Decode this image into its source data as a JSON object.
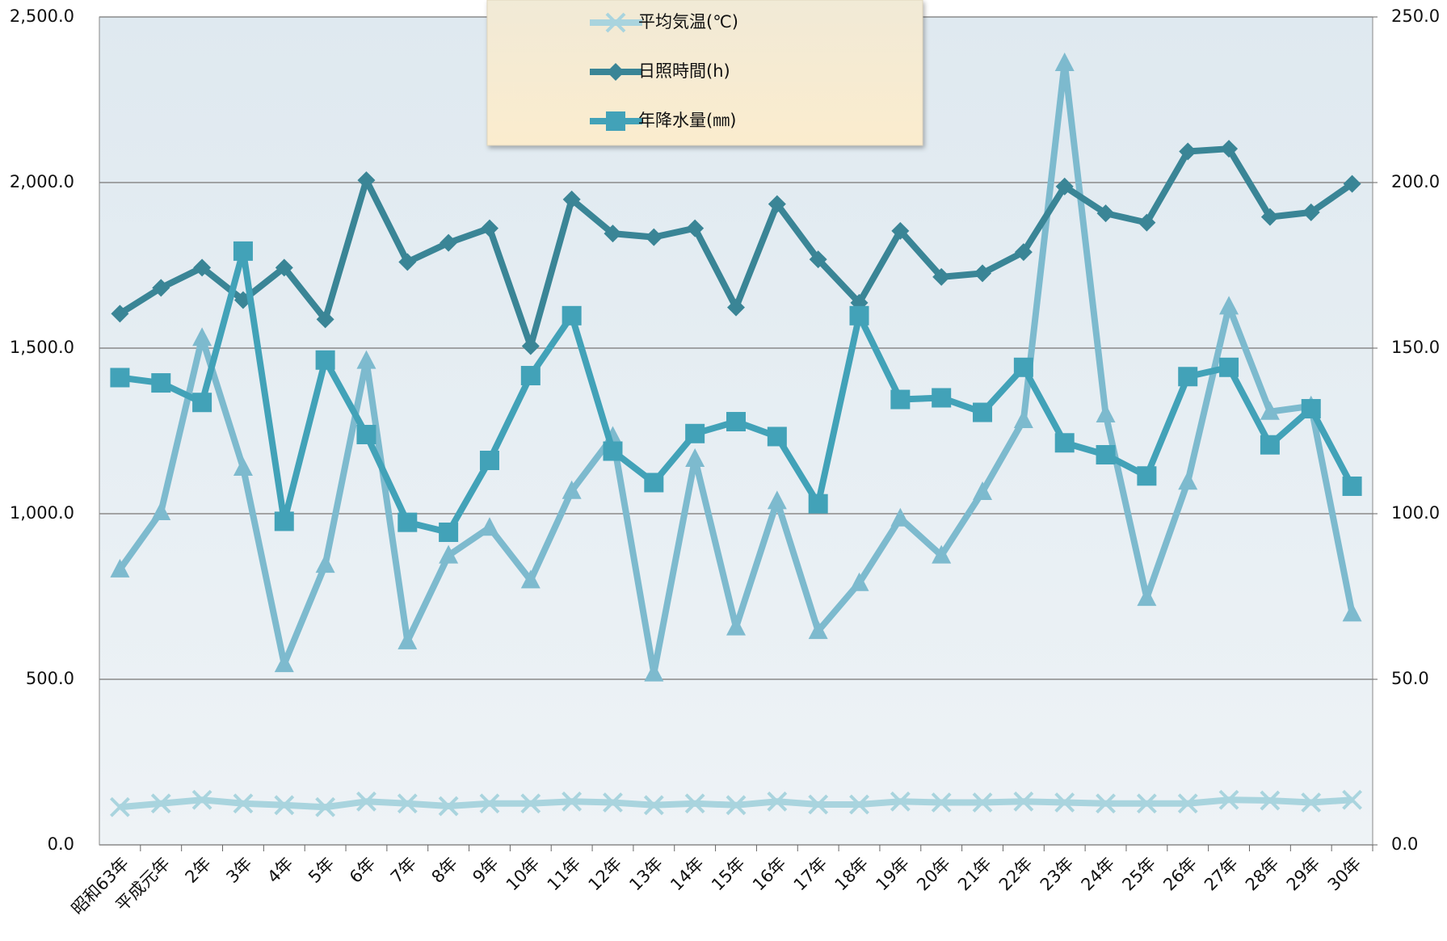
{
  "chart_data": {
    "type": "line",
    "categories": [
      "昭和63年",
      "平成元年",
      "2年",
      "3年",
      "4年",
      "5年",
      "6年",
      "7年",
      "8年",
      "9年",
      "10年",
      "11年",
      "12年",
      "13年",
      "14年",
      "15年",
      "16年",
      "17年",
      "18年",
      "19年",
      "20年",
      "21年",
      "22年",
      "23年",
      "24年",
      "25年",
      "26年",
      "27年",
      "28年",
      "29年",
      "30年"
    ],
    "series": [
      {
        "name": "平均気温(℃)",
        "color": "#a9d4de",
        "marker": "x",
        "axis": "y2",
        "values": [
          11.4,
          12.5,
          13.6,
          12.5,
          12.0,
          11.4,
          13.1,
          12.5,
          11.7,
          12.5,
          12.5,
          13.1,
          12.8,
          12.0,
          12.5,
          12.0,
          13.1,
          12.2,
          12.2,
          13.1,
          12.8,
          12.8,
          13.1,
          12.8,
          12.5,
          12.5,
          12.5,
          13.6,
          13.4,
          12.8,
          13.6
        ]
      },
      {
        "color": "#7dbace",
        "marker": "triangle",
        "values": [
          832,
          1005,
          1531,
          1139,
          546,
          846,
          1462,
          615,
          874,
          958,
          799,
          1069,
          1233,
          518,
          1166,
          657,
          1038,
          646,
          791,
          986,
          874,
          1066,
          1283,
          2361,
          1300,
          746,
          1097,
          1626,
          1308,
          1325,
          699
        ]
      },
      {
        "name": "日照時間(h)",
        "color": "#3a8596",
        "marker": "diamond",
        "values": [
          1604,
          1682,
          1743,
          1645,
          1743,
          1587,
          2007,
          1760,
          1818,
          1862,
          1506,
          1949,
          1846,
          1835,
          1862,
          1623,
          1935,
          1768,
          1637,
          1854,
          1715,
          1726,
          1790,
          1988,
          1907,
          1879,
          2094,
          2102,
          1896,
          1910,
          1996
        ]
      },
      {
        "name": "年降水量(㎜)",
        "color": "#42a2b8",
        "marker": "square",
        "values": [
          1411,
          1395,
          1336,
          1793,
          977,
          1464,
          1239,
          974,
          944,
          1161,
          1417,
          1598,
          1189,
          1094,
          1242,
          1278,
          1233,
          1030,
          1598,
          1345,
          1350,
          1306,
          1442,
          1214,
          1178,
          1114,
          1414,
          1442,
          1208,
          1317,
          1083
        ]
      }
    ],
    "ylim": [
      0,
      2500
    ],
    "yticks": [
      {
        "value": 0,
        "label": "0.0"
      },
      {
        "value": 500,
        "label": "500.0"
      },
      {
        "value": 1000,
        "label": "1,000.0"
      },
      {
        "value": 1500,
        "label": "1,500.0"
      },
      {
        "value": 2000,
        "label": "2,000.0"
      },
      {
        "value": 2500,
        "label": "2,500.0"
      }
    ],
    "y2lim": [
      0,
      250
    ],
    "y2ticks": [
      {
        "value": 0,
        "label": "0.0"
      },
      {
        "value": 50,
        "label": "50.0"
      },
      {
        "value": 100,
        "label": "100.0"
      },
      {
        "value": 150,
        "label": "150.0"
      },
      {
        "value": 200,
        "label": "200.0"
      },
      {
        "value": 250,
        "label": "250.0"
      }
    ],
    "grid": true,
    "legend": "top"
  }
}
